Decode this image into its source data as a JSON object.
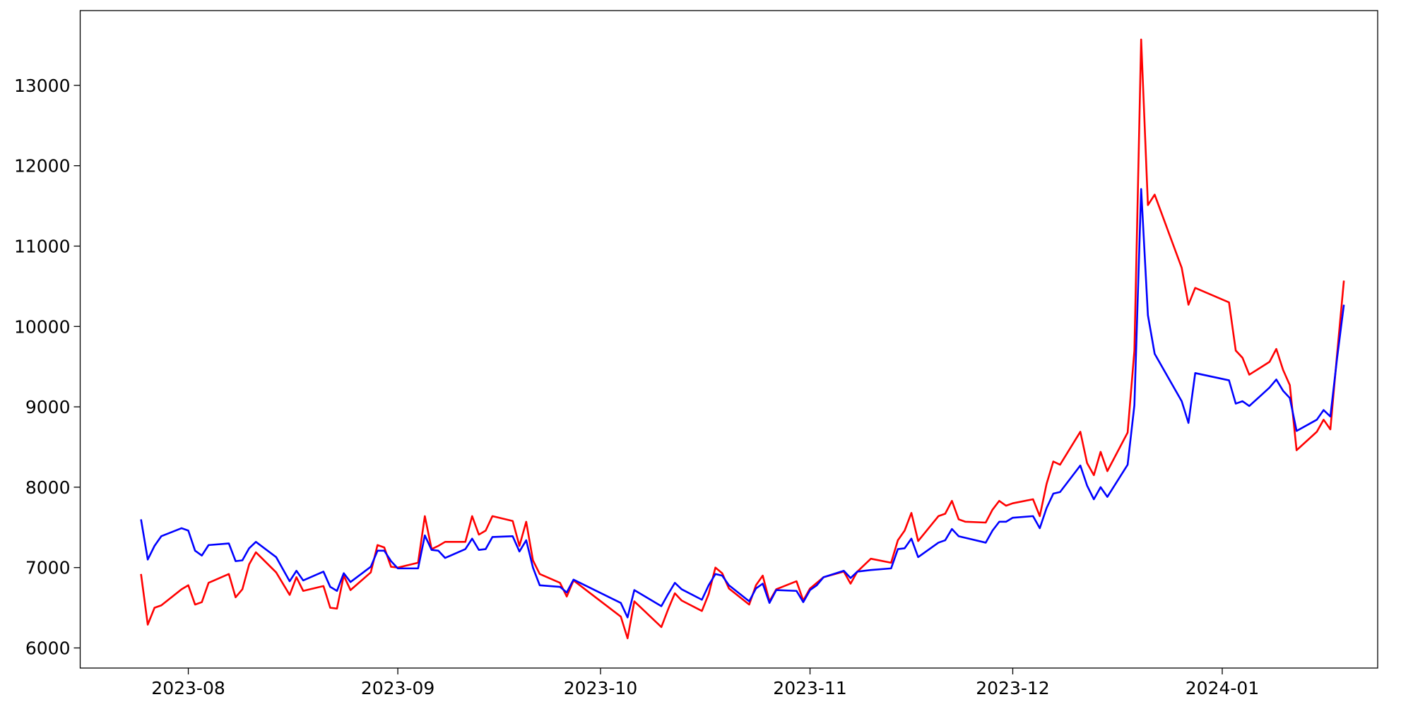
{
  "chart_data": {
    "type": "line",
    "x": [
      "2023-07-25",
      "2023-07-26",
      "2023-07-27",
      "2023-07-28",
      "2023-07-31",
      "2023-08-01",
      "2023-08-02",
      "2023-08-03",
      "2023-08-04",
      "2023-08-07",
      "2023-08-08",
      "2023-08-09",
      "2023-08-10",
      "2023-08-11",
      "2023-08-14",
      "2023-08-16",
      "2023-08-17",
      "2023-08-18",
      "2023-08-21",
      "2023-08-22",
      "2023-08-23",
      "2023-08-24",
      "2023-08-25",
      "2023-08-28",
      "2023-08-29",
      "2023-08-30",
      "2023-08-31",
      "2023-09-01",
      "2023-09-04",
      "2023-09-05",
      "2023-09-06",
      "2023-09-07",
      "2023-09-08",
      "2023-09-11",
      "2023-09-12",
      "2023-09-13",
      "2023-09-14",
      "2023-09-15",
      "2023-09-18",
      "2023-09-19",
      "2023-09-20",
      "2023-09-21",
      "2023-09-22",
      "2023-09-25",
      "2023-09-26",
      "2023-09-27",
      "2023-10-04",
      "2023-10-05",
      "2023-10-06",
      "2023-10-10",
      "2023-10-11",
      "2023-10-12",
      "2023-10-13",
      "2023-10-16",
      "2023-10-17",
      "2023-10-18",
      "2023-10-19",
      "2023-10-20",
      "2023-10-23",
      "2023-10-24",
      "2023-10-25",
      "2023-10-26",
      "2023-10-27",
      "2023-10-30",
      "2023-10-31",
      "2023-11-01",
      "2023-11-02",
      "2023-11-03",
      "2023-11-06",
      "2023-11-07",
      "2023-11-08",
      "2023-11-10",
      "2023-11-13",
      "2023-11-14",
      "2023-11-15",
      "2023-11-16",
      "2023-11-17",
      "2023-11-20",
      "2023-11-21",
      "2023-11-22",
      "2023-11-23",
      "2023-11-24",
      "2023-11-27",
      "2023-11-28",
      "2023-11-29",
      "2023-11-30",
      "2023-12-01",
      "2023-12-04",
      "2023-12-05",
      "2023-12-06",
      "2023-12-07",
      "2023-12-08",
      "2023-12-11",
      "2023-12-12",
      "2023-12-13",
      "2023-12-14",
      "2023-12-15",
      "2023-12-18",
      "2023-12-19",
      "2023-12-20",
      "2023-12-21",
      "2023-12-22",
      "2023-12-26",
      "2023-12-27",
      "2023-12-28",
      "2024-01-02",
      "2024-01-03",
      "2024-01-04",
      "2024-01-05",
      "2024-01-08",
      "2024-01-09",
      "2024-01-10",
      "2024-01-11",
      "2024-01-12",
      "2024-01-15",
      "2024-01-16",
      "2024-01-17",
      "2024-01-18",
      "2024-01-19"
    ],
    "series": [
      {
        "color": "#ff0000",
        "values": [
          6920,
          6290,
          6500,
          6530,
          6730,
          6780,
          6540,
          6570,
          6810,
          6920,
          6630,
          6730,
          7040,
          7190,
          6940,
          6660,
          6880,
          6710,
          6770,
          6500,
          6490,
          6900,
          6720,
          6940,
          7280,
          7250,
          7010,
          7000,
          7060,
          7640,
          7230,
          7270,
          7320,
          7320,
          7640,
          7410,
          7460,
          7640,
          7580,
          7270,
          7570,
          7090,
          6920,
          6810,
          6640,
          6840,
          6390,
          6120,
          6580,
          6260,
          6480,
          6680,
          6590,
          6460,
          6670,
          7000,
          6930,
          6740,
          6540,
          6780,
          6900,
          6580,
          6730,
          6830,
          6590,
          6740,
          6810,
          6880,
          6950,
          6800,
          6950,
          7110,
          7060,
          7340,
          7460,
          7680,
          7330,
          7640,
          7670,
          7830,
          7600,
          7570,
          7560,
          7720,
          7830,
          7770,
          7800,
          7850,
          7640,
          8040,
          8320,
          8280,
          8690,
          8300,
          8150,
          8440,
          8200,
          8680,
          9700,
          13570,
          11510,
          11640,
          10730,
          10270,
          10480,
          10300,
          9700,
          9610,
          9400,
          9560,
          9720,
          9460,
          9270,
          8460,
          8690,
          8840,
          8720,
          9660,
          10570
        ]
      },
      {
        "color": "#0000ff",
        "values": [
          7600,
          7100,
          7270,
          7390,
          7490,
          7460,
          7210,
          7150,
          7280,
          7300,
          7080,
          7090,
          7240,
          7320,
          7130,
          6830,
          6960,
          6840,
          6950,
          6760,
          6710,
          6930,
          6820,
          7010,
          7210,
          7210,
          7080,
          6990,
          6990,
          7400,
          7220,
          7210,
          7120,
          7230,
          7360,
          7220,
          7230,
          7380,
          7390,
          7200,
          7340,
          7000,
          6780,
          6760,
          6690,
          6850,
          6560,
          6380,
          6720,
          6520,
          6670,
          6810,
          6730,
          6600,
          6780,
          6920,
          6900,
          6780,
          6580,
          6740,
          6800,
          6560,
          6720,
          6710,
          6570,
          6720,
          6780,
          6880,
          6960,
          6870,
          6950,
          6970,
          6990,
          7230,
          7240,
          7360,
          7130,
          7310,
          7340,
          7480,
          7390,
          7370,
          7310,
          7460,
          7570,
          7570,
          7620,
          7640,
          7490,
          7740,
          7920,
          7940,
          8270,
          8020,
          7850,
          8000,
          7880,
          8280,
          9020,
          11710,
          10140,
          9660,
          9070,
          8800,
          9420,
          9330,
          9040,
          9070,
          9010,
          9240,
          9340,
          9200,
          9110,
          8700,
          8840,
          8960,
          8880,
          9610,
          10270
        ]
      }
    ],
    "xlim": [
      "2023-07-16",
      "2024-01-24"
    ],
    "xticks": [
      {
        "value": "2023-08-01",
        "label": "2023-08"
      },
      {
        "value": "2023-09-01",
        "label": "2023-09"
      },
      {
        "value": "2023-10-01",
        "label": "2023-10"
      },
      {
        "value": "2023-11-01",
        "label": "2023-11"
      },
      {
        "value": "2023-12-01",
        "label": "2023-12"
      },
      {
        "value": "2024-01-01",
        "label": "2024-01"
      }
    ],
    "ylim": [
      5750,
      13930
    ],
    "yticks": [
      6000,
      7000,
      8000,
      9000,
      10000,
      11000,
      12000,
      13000
    ],
    "grid": false
  }
}
